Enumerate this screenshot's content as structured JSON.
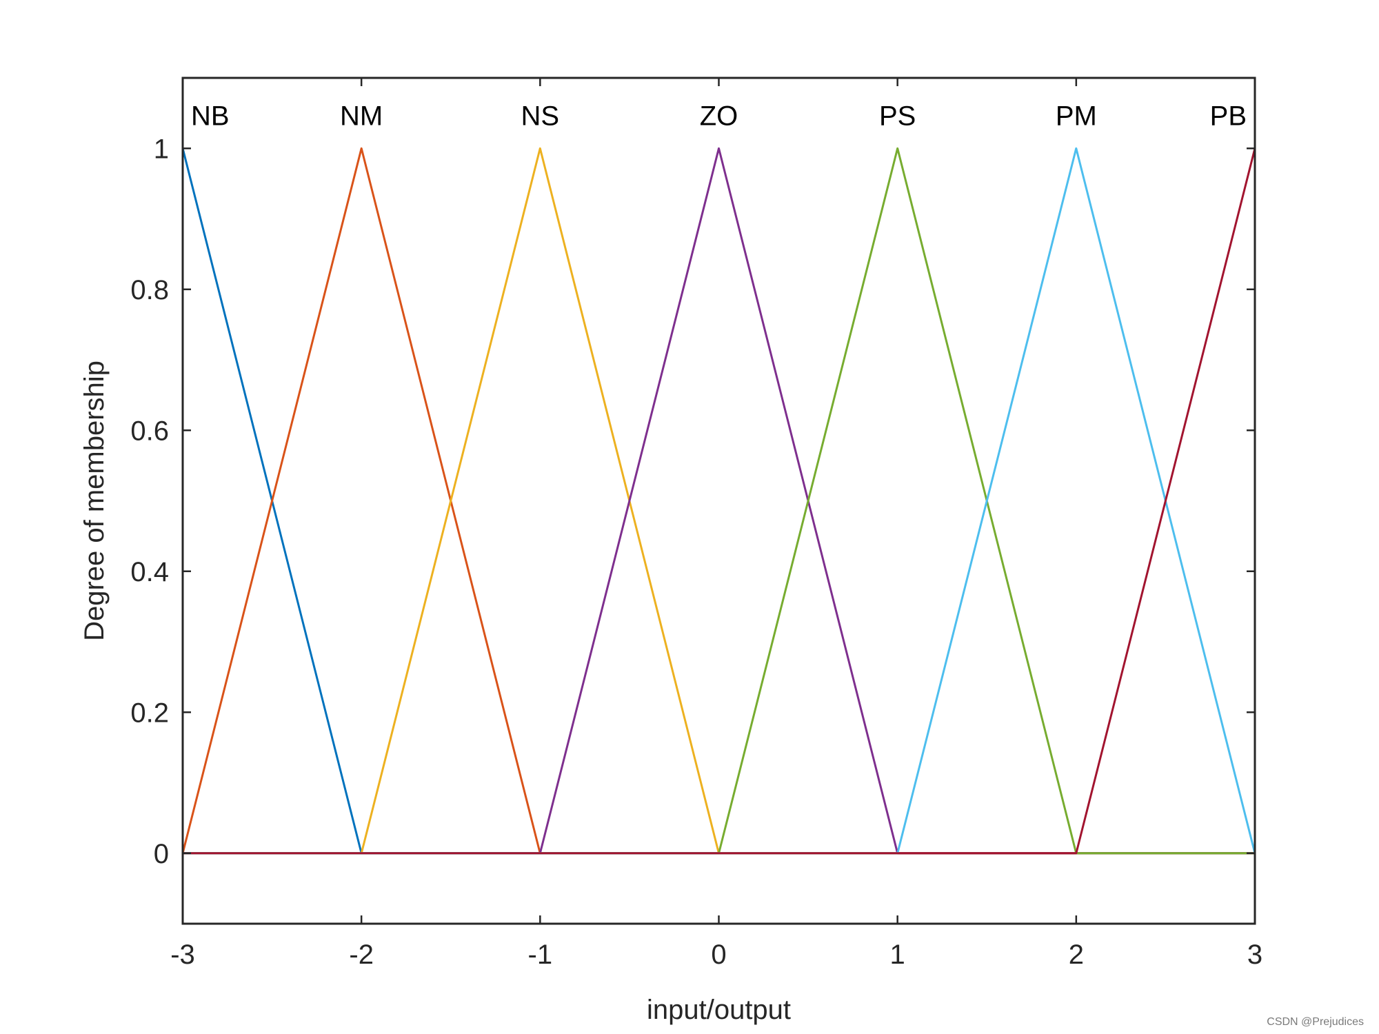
{
  "chart_data": {
    "type": "line",
    "title": "",
    "xlabel": "input/output",
    "ylabel": "Degree of membership",
    "xlim": [
      -3,
      3
    ],
    "ylim": [
      -0.1,
      1.1
    ],
    "xticks": [
      -3,
      -2,
      -1,
      0,
      1,
      2,
      3
    ],
    "xtick_labels": [
      "-3",
      "-2",
      "-1",
      "0",
      "1",
      "2",
      "3"
    ],
    "yticks": [
      0,
      0.2,
      0.4,
      0.6,
      0.8,
      1
    ],
    "ytick_labels": [
      "0",
      "0.2",
      "0.4",
      "0.6",
      "0.8",
      "1"
    ],
    "grid": false,
    "series": [
      {
        "name": "NB",
        "color": "#0072BD",
        "x": [
          -3,
          -2,
          3
        ],
        "y": [
          1,
          0,
          0
        ]
      },
      {
        "name": "NM",
        "color": "#D95319",
        "x": [
          -3,
          -2,
          -1,
          3
        ],
        "y": [
          0,
          1,
          0,
          0
        ]
      },
      {
        "name": "NS",
        "color": "#EDB120",
        "x": [
          -3,
          -2,
          -1,
          0,
          3
        ],
        "y": [
          0,
          0,
          1,
          0,
          0
        ]
      },
      {
        "name": "ZO",
        "color": "#7E2F8E",
        "x": [
          -3,
          -1,
          0,
          1,
          3
        ],
        "y": [
          0,
          0,
          1,
          0,
          0
        ]
      },
      {
        "name": "PS",
        "color": "#77AC30",
        "x": [
          -3,
          0,
          1,
          2,
          3
        ],
        "y": [
          0,
          0,
          1,
          0,
          0
        ]
      },
      {
        "name": "PM",
        "color": "#4DBEEE",
        "x": [
          -3,
          1,
          2,
          3
        ],
        "y": [
          0,
          0,
          1,
          0
        ]
      },
      {
        "name": "PB",
        "color": "#A2142F",
        "x": [
          -3,
          2,
          3
        ],
        "y": [
          0,
          0,
          1
        ]
      }
    ],
    "mf_labels": [
      {
        "text": "NB",
        "x": -3,
        "y": 1
      },
      {
        "text": "NM",
        "x": -2,
        "y": 1
      },
      {
        "text": "NS",
        "x": -1,
        "y": 1
      },
      {
        "text": "ZO",
        "x": 0,
        "y": 1
      },
      {
        "text": "PS",
        "x": 1,
        "y": 1
      },
      {
        "text": "PM",
        "x": 2,
        "y": 1
      },
      {
        "text": "PB",
        "x": 3,
        "y": 1
      }
    ]
  },
  "watermark": "CSDN @Prejudices"
}
